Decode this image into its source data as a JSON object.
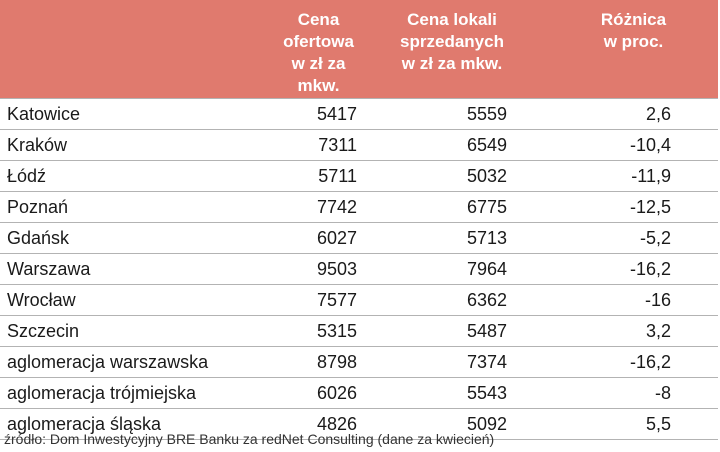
{
  "chart_data": {
    "type": "table",
    "columns": [
      "",
      "Cena ofertowa\nw zł za mkw.",
      "Cena lokali\nsprzedanych\nw zł za mkw.",
      "Różnica\nw proc."
    ],
    "rows": [
      [
        "Katowice",
        "5417",
        "5559",
        "2,6"
      ],
      [
        "Kraków",
        "7311",
        "6549",
        "-10,4"
      ],
      [
        "Łódź",
        "5711",
        "5032",
        "-11,9"
      ],
      [
        "Poznań",
        "7742",
        "6775",
        "-12,5"
      ],
      [
        "Gdańsk",
        "6027",
        "5713",
        "-5,2"
      ],
      [
        "Warszawa",
        "9503",
        "7964",
        "-16,2"
      ],
      [
        "Wrocław",
        "7577",
        "6362",
        "-16"
      ],
      [
        "Szczecin",
        "5315",
        "5487",
        "3,2"
      ],
      [
        "aglomeracja warszawska",
        "8798",
        "7374",
        "-16,2"
      ],
      [
        "aglomeracja trójmiejska",
        "6026",
        "5543",
        "-8"
      ],
      [
        "aglomeracja śląska",
        "4826",
        "5092",
        "5,5"
      ]
    ],
    "header_color": "#e07a6e",
    "source": "źródło: Dom Inwestycyjny BRE Banku za redNet Consulting (dane za kwiecień)"
  }
}
